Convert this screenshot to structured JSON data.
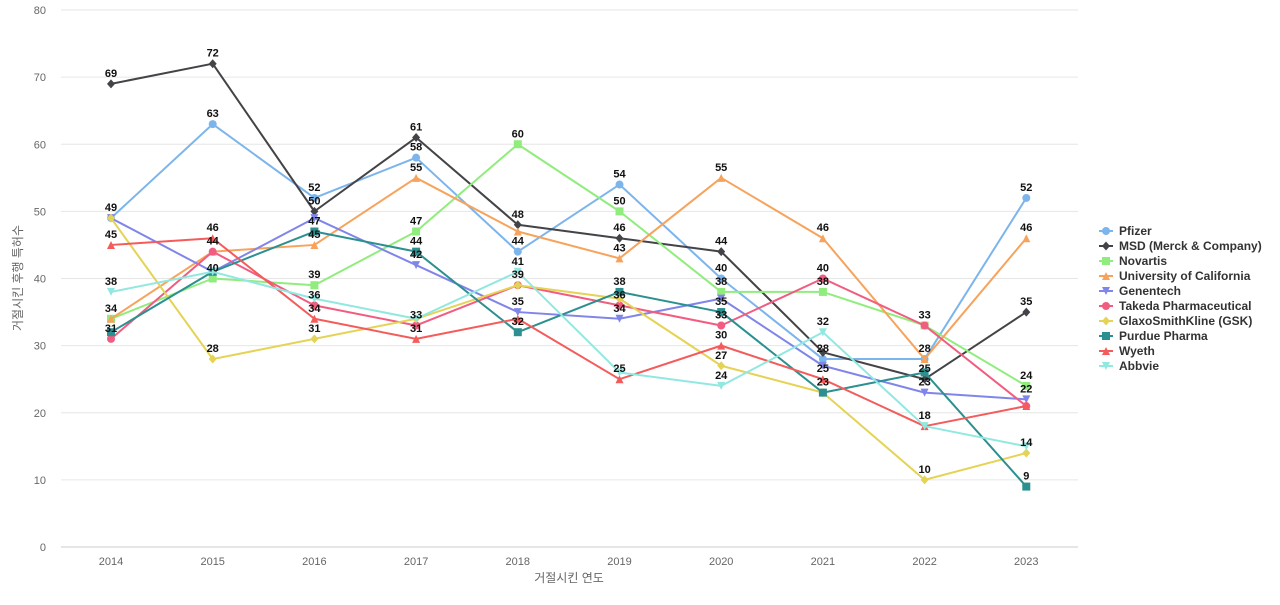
{
  "chart_data": {
    "type": "line",
    "xlabel": "거절시킨 연도",
    "ylabel": "거절시킨 후행 특허수",
    "ylim": [
      0,
      80
    ],
    "yticks": [
      0,
      10,
      20,
      30,
      40,
      50,
      60,
      70,
      80
    ],
    "grid": true,
    "legend_position": "right",
    "categories": [
      "2014",
      "2015",
      "2016",
      "2017",
      "2018",
      "2019",
      "2020",
      "2021",
      "2022",
      "2023"
    ],
    "series": [
      {
        "name": "Pfizer",
        "color": "#7cb5ec",
        "marker": "circle",
        "values": [
          49,
          63,
          52,
          58,
          44,
          54,
          40,
          28,
          28,
          52
        ]
      },
      {
        "name": "MSD (Merck & Company)",
        "color": "#434348",
        "marker": "diamond",
        "values": [
          69,
          72,
          50,
          61,
          48,
          46,
          44,
          29,
          25,
          35
        ]
      },
      {
        "name": "Novartis",
        "color": "#90ed7d",
        "marker": "square",
        "values": [
          34,
          40,
          39,
          47,
          60,
          50,
          38,
          38,
          33,
          24
        ]
      },
      {
        "name": "University of California",
        "color": "#f7a35c",
        "marker": "triangle",
        "values": [
          34,
          44,
          45,
          55,
          47,
          43,
          55,
          46,
          28,
          46
        ]
      },
      {
        "name": "Genentech",
        "color": "#8085e9",
        "marker": "triangle-down",
        "values": [
          49,
          41,
          49,
          42,
          35,
          34,
          37,
          27,
          23,
          22
        ]
      },
      {
        "name": "Takeda Pharmaceutical",
        "color": "#f15c80",
        "marker": "circle",
        "values": [
          31,
          44,
          36,
          33,
          39,
          36,
          33,
          40,
          33,
          21
        ]
      },
      {
        "name": "GlaxoSmithKline (GSK)",
        "color": "#e4d354",
        "marker": "diamond",
        "values": [
          49,
          28,
          31,
          34,
          39,
          37,
          27,
          23,
          10,
          14
        ]
      },
      {
        "name": "Purdue Pharma",
        "color": "#2b908f",
        "marker": "square",
        "values": [
          32,
          41,
          47,
          44,
          32,
          38,
          35,
          23,
          26,
          9
        ]
      },
      {
        "name": "Wyeth",
        "color": "#f45b5b",
        "marker": "triangle",
        "values": [
          45,
          46,
          34,
          31,
          34,
          25,
          30,
          25,
          18,
          21
        ]
      },
      {
        "name": "Abbvie",
        "color": "#91e8e1",
        "marker": "triangle-down",
        "values": [
          38,
          41,
          37,
          34,
          41,
          26,
          24,
          32,
          18,
          15
        ]
      }
    ],
    "data_labels": [
      {
        "x": "2014",
        "y": 69,
        "text": "69"
      },
      {
        "x": "2014",
        "y": 49,
        "text": "49"
      },
      {
        "x": "2014",
        "y": 45,
        "text": "45"
      },
      {
        "x": "2014",
        "y": 38,
        "text": "38"
      },
      {
        "x": "2014",
        "y": 34,
        "text": "34"
      },
      {
        "x": "2014",
        "y": 31,
        "text": "31"
      },
      {
        "x": "2015",
        "y": 72,
        "text": "72"
      },
      {
        "x": "2015",
        "y": 63,
        "text": "63"
      },
      {
        "x": "2015",
        "y": 46,
        "text": "46"
      },
      {
        "x": "2015",
        "y": 44,
        "text": "44"
      },
      {
        "x": "2015",
        "y": 40,
        "text": "40"
      },
      {
        "x": "2015",
        "y": 28,
        "text": "28"
      },
      {
        "x": "2016",
        "y": 52,
        "text": "52"
      },
      {
        "x": "2016",
        "y": 50,
        "text": "50"
      },
      {
        "x": "2016",
        "y": 47,
        "text": "47"
      },
      {
        "x": "2016",
        "y": 45,
        "text": "45"
      },
      {
        "x": "2016",
        "y": 39,
        "text": "39"
      },
      {
        "x": "2016",
        "y": 36,
        "text": "36"
      },
      {
        "x": "2016",
        "y": 34,
        "text": "34"
      },
      {
        "x": "2016",
        "y": 31,
        "text": "31"
      },
      {
        "x": "2017",
        "y": 61,
        "text": "61"
      },
      {
        "x": "2017",
        "y": 58,
        "text": "58"
      },
      {
        "x": "2017",
        "y": 55,
        "text": "55"
      },
      {
        "x": "2017",
        "y": 47,
        "text": "47"
      },
      {
        "x": "2017",
        "y": 44,
        "text": "44"
      },
      {
        "x": "2017",
        "y": 42,
        "text": "42"
      },
      {
        "x": "2017",
        "y": 33,
        "text": "33"
      },
      {
        "x": "2017",
        "y": 31,
        "text": "31"
      },
      {
        "x": "2018",
        "y": 60,
        "text": "60"
      },
      {
        "x": "2018",
        "y": 48,
        "text": "48"
      },
      {
        "x": "2018",
        "y": 44,
        "text": "44"
      },
      {
        "x": "2018",
        "y": 41,
        "text": "41"
      },
      {
        "x": "2018",
        "y": 39,
        "text": "39"
      },
      {
        "x": "2018",
        "y": 35,
        "text": "35"
      },
      {
        "x": "2018",
        "y": 32,
        "text": "32"
      },
      {
        "x": "2019",
        "y": 54,
        "text": "54"
      },
      {
        "x": "2019",
        "y": 50,
        "text": "50"
      },
      {
        "x": "2019",
        "y": 46,
        "text": "46"
      },
      {
        "x": "2019",
        "y": 43,
        "text": "43"
      },
      {
        "x": "2019",
        "y": 38,
        "text": "38"
      },
      {
        "x": "2019",
        "y": 36,
        "text": "36"
      },
      {
        "x": "2019",
        "y": 34,
        "text": "34"
      },
      {
        "x": "2019",
        "y": 25,
        "text": "25"
      },
      {
        "x": "2020",
        "y": 55,
        "text": "55"
      },
      {
        "x": "2020",
        "y": 44,
        "text": "44"
      },
      {
        "x": "2020",
        "y": 40,
        "text": "40"
      },
      {
        "x": "2020",
        "y": 38,
        "text": "38"
      },
      {
        "x": "2020",
        "y": 35,
        "text": "35"
      },
      {
        "x": "2020",
        "y": 33,
        "text": "33"
      },
      {
        "x": "2020",
        "y": 30,
        "text": "30"
      },
      {
        "x": "2020",
        "y": 27,
        "text": "27"
      },
      {
        "x": "2020",
        "y": 24,
        "text": "24"
      },
      {
        "x": "2021",
        "y": 46,
        "text": "46"
      },
      {
        "x": "2021",
        "y": 40,
        "text": "40"
      },
      {
        "x": "2021",
        "y": 38,
        "text": "38"
      },
      {
        "x": "2021",
        "y": 32,
        "text": "32"
      },
      {
        "x": "2021",
        "y": 28,
        "text": "28"
      },
      {
        "x": "2021",
        "y": 25,
        "text": "25"
      },
      {
        "x": "2021",
        "y": 23,
        "text": "23"
      },
      {
        "x": "2022",
        "y": 33,
        "text": "33"
      },
      {
        "x": "2022",
        "y": 28,
        "text": "28"
      },
      {
        "x": "2022",
        "y": 25,
        "text": "25"
      },
      {
        "x": "2022",
        "y": 23,
        "text": "23"
      },
      {
        "x": "2022",
        "y": 18,
        "text": "18"
      },
      {
        "x": "2022",
        "y": 10,
        "text": "10"
      },
      {
        "x": "2023",
        "y": 52,
        "text": "52"
      },
      {
        "x": "2023",
        "y": 46,
        "text": "46"
      },
      {
        "x": "2023",
        "y": 35,
        "text": "35"
      },
      {
        "x": "2023",
        "y": 24,
        "text": "24"
      },
      {
        "x": "2023",
        "y": 22,
        "text": "22"
      },
      {
        "x": "2023",
        "y": 14,
        "text": "14"
      },
      {
        "x": "2023",
        "y": 9,
        "text": "9"
      }
    ]
  }
}
